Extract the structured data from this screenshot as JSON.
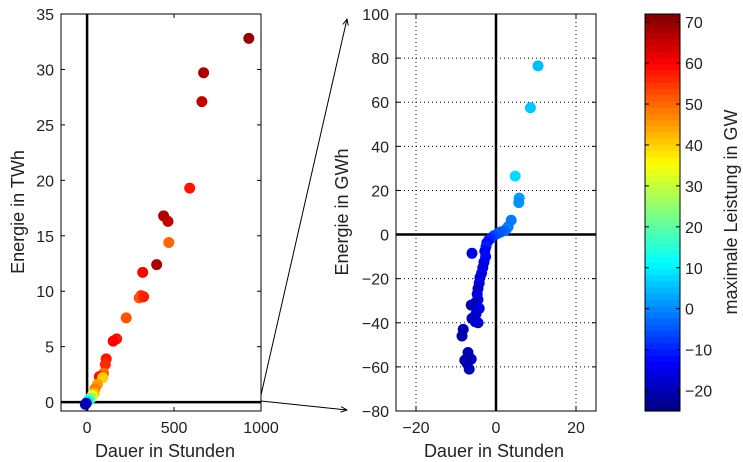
{
  "chart_data": [
    {
      "type": "scatter",
      "xlabel": "Dauer in Stunden",
      "ylabel": "Energie in TWh",
      "xlim": [
        -150,
        1000
      ],
      "ylim": [
        -0.8,
        35
      ],
      "xticks": [
        0,
        500,
        1000
      ],
      "yticks": [
        0,
        5,
        10,
        15,
        20,
        25,
        30,
        35
      ],
      "grid": false,
      "zero_lines": true,
      "points": [
        {
          "x": 930,
          "y": 32.8,
          "c": 70
        },
        {
          "x": 670,
          "y": 29.7,
          "c": 68
        },
        {
          "x": 660,
          "y": 27.1,
          "c": 66
        },
        {
          "x": 590,
          "y": 19.3,
          "c": 58
        },
        {
          "x": 440,
          "y": 16.8,
          "c": 68
        },
        {
          "x": 465,
          "y": 16.3,
          "c": 66
        },
        {
          "x": 470,
          "y": 14.4,
          "c": 50
        },
        {
          "x": 400,
          "y": 12.4,
          "c": 68
        },
        {
          "x": 320,
          "y": 11.7,
          "c": 60
        },
        {
          "x": 310,
          "y": 9.6,
          "c": 55
        },
        {
          "x": 300,
          "y": 9.4,
          "c": 52
        },
        {
          "x": 325,
          "y": 9.5,
          "c": 57
        },
        {
          "x": 225,
          "y": 7.6,
          "c": 52
        },
        {
          "x": 170,
          "y": 5.7,
          "c": 58
        },
        {
          "x": 150,
          "y": 5.5,
          "c": 60
        },
        {
          "x": 110,
          "y": 3.9,
          "c": 58
        },
        {
          "x": 105,
          "y": 3.4,
          "c": 56
        },
        {
          "x": 95,
          "y": 2.6,
          "c": 50
        },
        {
          "x": 70,
          "y": 2.3,
          "c": 58
        },
        {
          "x": 90,
          "y": 2.2,
          "c": 40
        },
        {
          "x": 60,
          "y": 1.6,
          "c": 45
        },
        {
          "x": 45,
          "y": 1.2,
          "c": 48
        },
        {
          "x": 40,
          "y": 0.8,
          "c": 42
        },
        {
          "x": 30,
          "y": 0.6,
          "c": 35
        },
        {
          "x": 25,
          "y": 0.4,
          "c": 28
        },
        {
          "x": 15,
          "y": 0.3,
          "c": 22
        },
        {
          "x": 5,
          "y": 0.1,
          "c": 10
        },
        {
          "x": -5,
          "y": -0.1,
          "c": -18
        },
        {
          "x": -10,
          "y": -0.2,
          "c": -20
        }
      ]
    },
    {
      "type": "scatter",
      "xlabel": "Dauer in Stunden",
      "ylabel": "Energie in GWh",
      "xlim": [
        -25,
        25
      ],
      "ylim": [
        -80,
        100
      ],
      "xticks": [
        -20,
        0,
        20
      ],
      "yticks": [
        -80,
        -60,
        -40,
        -20,
        0,
        20,
        40,
        60,
        80,
        100
      ],
      "grid": true,
      "zero_lines": true,
      "points": [
        {
          "x": 10.5,
          "y": 76.5,
          "c": 5
        },
        {
          "x": 8.6,
          "y": 57.5,
          "c": 6
        },
        {
          "x": 4.8,
          "y": 26.5,
          "c": 8
        },
        {
          "x": 5.8,
          "y": 16.5,
          "c": 2
        },
        {
          "x": 5.7,
          "y": 14.5,
          "c": 1
        },
        {
          "x": 3.8,
          "y": 6.5,
          "c": -1
        },
        {
          "x": 3.0,
          "y": 3.5,
          "c": -2
        },
        {
          "x": 2.6,
          "y": 2.5,
          "c": 0
        },
        {
          "x": 2.2,
          "y": 1.8,
          "c": -3
        },
        {
          "x": 1.2,
          "y": 1.2,
          "c": -4
        },
        {
          "x": 0.5,
          "y": 0.6,
          "c": -5
        },
        {
          "x": -0.5,
          "y": -0.5,
          "c": -6
        },
        {
          "x": -1.2,
          "y": -1.5,
          "c": -8
        },
        {
          "x": -1.8,
          "y": -2.5,
          "c": -10
        },
        {
          "x": -2.3,
          "y": -3.8,
          "c": -12
        },
        {
          "x": -2.5,
          "y": -5.5,
          "c": -10
        },
        {
          "x": -2.8,
          "y": -7.5,
          "c": -14
        },
        {
          "x": -6.0,
          "y": -8.5,
          "c": -16
        },
        {
          "x": -2.6,
          "y": -10.0,
          "c": -12
        },
        {
          "x": -3.0,
          "y": -12.5,
          "c": -15
        },
        {
          "x": -3.3,
          "y": -15.0,
          "c": -16
        },
        {
          "x": -3.6,
          "y": -17.5,
          "c": -14
        },
        {
          "x": -4.0,
          "y": -19.5,
          "c": -17
        },
        {
          "x": -4.2,
          "y": -22.0,
          "c": -15
        },
        {
          "x": -4.5,
          "y": -24.5,
          "c": -18
        },
        {
          "x": -4.7,
          "y": -27.0,
          "c": -16
        },
        {
          "x": -4.5,
          "y": -29.5,
          "c": -15
        },
        {
          "x": -5.2,
          "y": -31.0,
          "c": -19
        },
        {
          "x": -6.2,
          "y": -32.0,
          "c": -20
        },
        {
          "x": -4.2,
          "y": -33.5,
          "c": -15
        },
        {
          "x": -5.0,
          "y": -36.0,
          "c": -17
        },
        {
          "x": -6.0,
          "y": -38.0,
          "c": -18
        },
        {
          "x": -5.2,
          "y": -39.5,
          "c": -19
        },
        {
          "x": -4.5,
          "y": -40.0,
          "c": -17
        },
        {
          "x": -8.2,
          "y": -43.0,
          "c": -20
        },
        {
          "x": -8.5,
          "y": -46.0,
          "c": -21
        },
        {
          "x": -7.0,
          "y": -53.5,
          "c": -19
        },
        {
          "x": -7.0,
          "y": -55.5,
          "c": -21
        },
        {
          "x": -6.2,
          "y": -56.5,
          "c": -20
        },
        {
          "x": -7.8,
          "y": -57.0,
          "c": -21
        },
        {
          "x": -7.2,
          "y": -58.5,
          "c": -20
        },
        {
          "x": -6.7,
          "y": -61.0,
          "c": -20
        }
      ]
    },
    {
      "type": "colorbar",
      "label": "maximale Leistung in GW",
      "range": [
        -25,
        72
      ],
      "ticks": [
        -20,
        -10,
        0,
        10,
        20,
        30,
        40,
        50,
        60,
        70
      ],
      "colormap": "jet"
    }
  ]
}
